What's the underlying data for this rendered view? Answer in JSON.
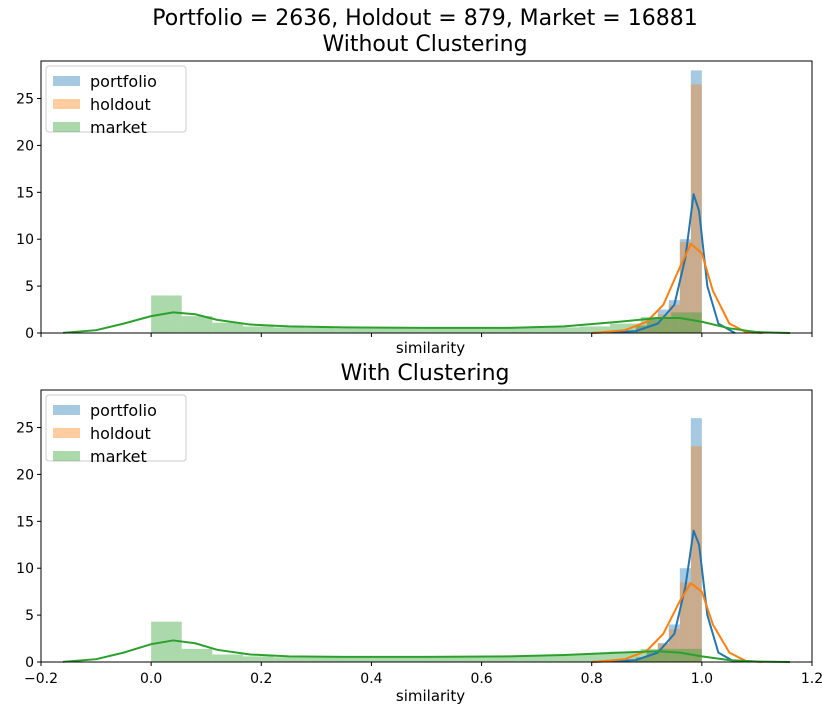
{
  "suptitle": "Portfolio = 2636, Holdout = 879, Market = 16881",
  "colors": {
    "portfolio": "#1f77b4",
    "holdout": "#ff7f0e",
    "market": "#2ca02c"
  },
  "chart_data": [
    {
      "type": "histogram-kde",
      "title": "Without Clustering",
      "xlabel": "similarity",
      "ylabel": "",
      "xlim": [
        -0.2,
        1.2
      ],
      "ylim": [
        0,
        29
      ],
      "yticks": [
        0,
        5,
        10,
        15,
        20,
        25
      ],
      "xticks": [],
      "grid": false,
      "legend_position": "top-left",
      "series": [
        {
          "name": "portfolio",
          "bins": [
            {
              "x0": 0.88,
              "x1": 0.9,
              "height": 0.8
            },
            {
              "x0": 0.9,
              "x1": 0.92,
              "height": 1.5
            },
            {
              "x0": 0.92,
              "x1": 0.94,
              "height": 2.5
            },
            {
              "x0": 0.94,
              "x1": 0.96,
              "height": 3.5
            },
            {
              "x0": 0.96,
              "x1": 0.98,
              "height": 10.0
            },
            {
              "x0": 0.98,
              "x1": 1.0,
              "height": 28.0
            }
          ],
          "kde": [
            [
              0.8,
              0.0
            ],
            [
              0.88,
              0.2
            ],
            [
              0.92,
              1.0
            ],
            [
              0.95,
              3.0
            ],
            [
              0.97,
              8.0
            ],
            [
              0.985,
              14.8
            ],
            [
              0.995,
              13.0
            ],
            [
              1.01,
              5.0
            ],
            [
              1.03,
              1.0
            ],
            [
              1.06,
              0.0
            ]
          ]
        },
        {
          "name": "holdout",
          "bins": [
            {
              "x0": 0.88,
              "x1": 0.9,
              "height": 0.8
            },
            {
              "x0": 0.9,
              "x1": 0.92,
              "height": 1.4
            },
            {
              "x0": 0.92,
              "x1": 0.94,
              "height": 2.0
            },
            {
              "x0": 0.94,
              "x1": 0.96,
              "height": 3.0
            },
            {
              "x0": 0.96,
              "x1": 0.98,
              "height": 9.7
            },
            {
              "x0": 0.98,
              "x1": 1.0,
              "height": 26.5
            }
          ],
          "kde": [
            [
              0.8,
              0.0
            ],
            [
              0.86,
              0.3
            ],
            [
              0.9,
              1.2
            ],
            [
              0.93,
              3.0
            ],
            [
              0.96,
              7.0
            ],
            [
              0.98,
              9.5
            ],
            [
              1.0,
              8.5
            ],
            [
              1.02,
              4.5
            ],
            [
              1.05,
              1.0
            ],
            [
              1.08,
              0.1
            ],
            [
              1.11,
              0.0
            ]
          ]
        },
        {
          "name": "market",
          "bins": [
            {
              "x0": 0.0,
              "x1": 0.0556,
              "height": 4.0
            },
            {
              "x0": 0.0556,
              "x1": 0.1111,
              "height": 1.8
            },
            {
              "x0": 0.1111,
              "x1": 0.1667,
              "height": 1.1
            },
            {
              "x0": 0.1667,
              "x1": 0.2222,
              "height": 0.7
            },
            {
              "x0": 0.2222,
              "x1": 0.2778,
              "height": 0.6
            },
            {
              "x0": 0.2778,
              "x1": 0.3333,
              "height": 0.55
            },
            {
              "x0": 0.3333,
              "x1": 0.3889,
              "height": 0.5
            },
            {
              "x0": 0.3889,
              "x1": 0.4444,
              "height": 0.5
            },
            {
              "x0": 0.4444,
              "x1": 0.5,
              "height": 0.5
            },
            {
              "x0": 0.5,
              "x1": 0.5556,
              "height": 0.5
            },
            {
              "x0": 0.5556,
              "x1": 0.6111,
              "height": 0.5
            },
            {
              "x0": 0.6111,
              "x1": 0.6667,
              "height": 0.5
            },
            {
              "x0": 0.6667,
              "x1": 0.7222,
              "height": 0.55
            },
            {
              "x0": 0.7222,
              "x1": 0.7778,
              "height": 0.6
            },
            {
              "x0": 0.7778,
              "x1": 0.8333,
              "height": 0.7
            },
            {
              "x0": 0.8333,
              "x1": 0.8889,
              "height": 1.0
            },
            {
              "x0": 0.8889,
              "x1": 0.9444,
              "height": 1.7
            },
            {
              "x0": 0.9444,
              "x1": 1.0,
              "height": 2.2
            }
          ],
          "kde": [
            [
              -0.16,
              0.02
            ],
            [
              -0.1,
              0.3
            ],
            [
              -0.05,
              1.0
            ],
            [
              0.0,
              1.8
            ],
            [
              0.04,
              2.2
            ],
            [
              0.08,
              2.0
            ],
            [
              0.12,
              1.4
            ],
            [
              0.18,
              0.9
            ],
            [
              0.25,
              0.7
            ],
            [
              0.35,
              0.6
            ],
            [
              0.5,
              0.55
            ],
            [
              0.65,
              0.55
            ],
            [
              0.75,
              0.7
            ],
            [
              0.85,
              1.2
            ],
            [
              0.92,
              1.6
            ],
            [
              0.96,
              1.6
            ],
            [
              1.0,
              1.2
            ],
            [
              1.05,
              0.5
            ],
            [
              1.1,
              0.1
            ],
            [
              1.16,
              0.0
            ]
          ]
        }
      ]
    },
    {
      "type": "histogram-kde",
      "title": "With Clustering",
      "xlabel": "similarity",
      "ylabel": "",
      "xlim": [
        -0.2,
        1.2
      ],
      "ylim": [
        0,
        29
      ],
      "yticks": [
        0,
        5,
        10,
        15,
        20,
        25
      ],
      "xticks": [
        -0.2,
        0.0,
        0.2,
        0.4,
        0.6,
        0.8,
        1.0,
        1.2
      ],
      "xtick_labels": [
        "−0.2",
        "0.0",
        "0.2",
        "0.4",
        "0.6",
        "0.8",
        "1.0",
        "1.2"
      ],
      "grid": false,
      "legend_position": "top-left",
      "series": [
        {
          "name": "portfolio",
          "bins": [
            {
              "x0": 0.88,
              "x1": 0.9,
              "height": 0.5
            },
            {
              "x0": 0.9,
              "x1": 0.92,
              "height": 1.0
            },
            {
              "x0": 0.92,
              "x1": 0.94,
              "height": 2.0
            },
            {
              "x0": 0.94,
              "x1": 0.96,
              "height": 4.0
            },
            {
              "x0": 0.96,
              "x1": 0.98,
              "height": 10.0
            },
            {
              "x0": 0.98,
              "x1": 1.0,
              "height": 26.0
            }
          ],
          "kde": [
            [
              0.8,
              0.0
            ],
            [
              0.88,
              0.2
            ],
            [
              0.92,
              1.0
            ],
            [
              0.95,
              3.0
            ],
            [
              0.97,
              8.0
            ],
            [
              0.985,
              14.0
            ],
            [
              0.995,
              12.5
            ],
            [
              1.01,
              5.0
            ],
            [
              1.03,
              1.0
            ],
            [
              1.06,
              0.0
            ]
          ]
        },
        {
          "name": "holdout",
          "bins": [
            {
              "x0": 0.88,
              "x1": 0.9,
              "height": 0.5
            },
            {
              "x0": 0.9,
              "x1": 0.92,
              "height": 1.0
            },
            {
              "x0": 0.92,
              "x1": 0.94,
              "height": 2.0
            },
            {
              "x0": 0.94,
              "x1": 0.96,
              "height": 3.5
            },
            {
              "x0": 0.96,
              "x1": 0.98,
              "height": 8.5
            },
            {
              "x0": 0.98,
              "x1": 1.0,
              "height": 23.0
            }
          ],
          "kde": [
            [
              0.8,
              0.0
            ],
            [
              0.86,
              0.3
            ],
            [
              0.9,
              1.2
            ],
            [
              0.93,
              3.0
            ],
            [
              0.96,
              6.5
            ],
            [
              0.98,
              8.4
            ],
            [
              1.0,
              7.5
            ],
            [
              1.02,
              4.0
            ],
            [
              1.05,
              1.0
            ],
            [
              1.08,
              0.1
            ],
            [
              1.11,
              0.0
            ]
          ]
        },
        {
          "name": "market",
          "bins": [
            {
              "x0": 0.0,
              "x1": 0.0556,
              "height": 4.3
            },
            {
              "x0": 0.0556,
              "x1": 0.1111,
              "height": 1.4
            },
            {
              "x0": 0.1111,
              "x1": 0.1667,
              "height": 0.8
            },
            {
              "x0": 0.1667,
              "x1": 0.2222,
              "height": 0.6
            },
            {
              "x0": 0.2222,
              "x1": 0.2778,
              "height": 0.5
            },
            {
              "x0": 0.2778,
              "x1": 0.3333,
              "height": 0.5
            },
            {
              "x0": 0.3333,
              "x1": 0.3889,
              "height": 0.5
            },
            {
              "x0": 0.3889,
              "x1": 0.4444,
              "height": 0.5
            },
            {
              "x0": 0.4444,
              "x1": 0.5,
              "height": 0.5
            },
            {
              "x0": 0.5,
              "x1": 0.5556,
              "height": 0.5
            },
            {
              "x0": 0.5556,
              "x1": 0.6111,
              "height": 0.5
            },
            {
              "x0": 0.6111,
              "x1": 0.6667,
              "height": 0.55
            },
            {
              "x0": 0.6667,
              "x1": 0.7222,
              "height": 0.6
            },
            {
              "x0": 0.7222,
              "x1": 0.7778,
              "height": 0.7
            },
            {
              "x0": 0.7778,
              "x1": 0.8333,
              "height": 0.85
            },
            {
              "x0": 0.8333,
              "x1": 0.8889,
              "height": 1.1
            },
            {
              "x0": 0.8889,
              "x1": 0.9444,
              "height": 1.4
            },
            {
              "x0": 0.9444,
              "x1": 1.0,
              "height": 1.4
            }
          ],
          "kde": [
            [
              -0.16,
              0.02
            ],
            [
              -0.1,
              0.3
            ],
            [
              -0.05,
              1.0
            ],
            [
              0.0,
              1.9
            ],
            [
              0.04,
              2.3
            ],
            [
              0.08,
              2.0
            ],
            [
              0.12,
              1.3
            ],
            [
              0.18,
              0.8
            ],
            [
              0.25,
              0.6
            ],
            [
              0.35,
              0.55
            ],
            [
              0.5,
              0.55
            ],
            [
              0.65,
              0.6
            ],
            [
              0.75,
              0.75
            ],
            [
              0.85,
              1.0
            ],
            [
              0.92,
              1.15
            ],
            [
              0.96,
              1.0
            ],
            [
              1.0,
              0.6
            ],
            [
              1.05,
              0.2
            ],
            [
              1.1,
              0.05
            ],
            [
              1.16,
              0.0
            ]
          ]
        }
      ]
    }
  ]
}
